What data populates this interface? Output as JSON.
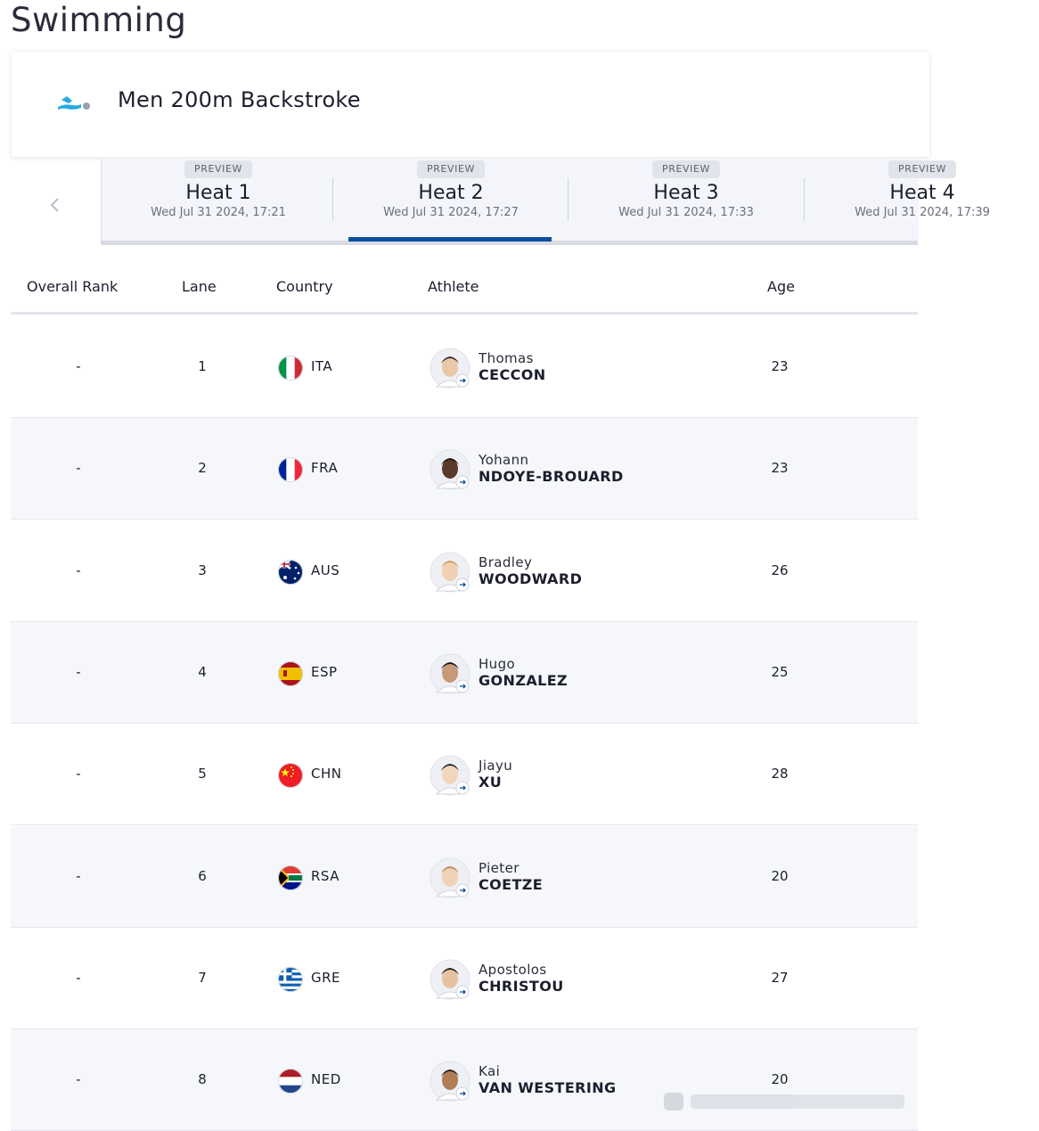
{
  "page": {
    "title": "Swimming"
  },
  "event": {
    "name": "Men 200m Backstroke",
    "icon": "swimming-pictogram-icon"
  },
  "heats": [
    {
      "badge": "PREVIEW",
      "label": "Heat 1",
      "time": "Wed Jul 31 2024, 17:21",
      "active": false
    },
    {
      "badge": "PREVIEW",
      "label": "Heat 2",
      "time": "Wed Jul 31 2024, 17:27",
      "active": true
    },
    {
      "badge": "PREVIEW",
      "label": "Heat 3",
      "time": "Wed Jul 31 2024, 17:33",
      "active": false
    },
    {
      "badge": "PREVIEW",
      "label": "Heat 4",
      "time": "Wed Jul 31 2024, 17:39",
      "active": false
    }
  ],
  "table": {
    "headers": {
      "rank": "Overall Rank",
      "lane": "Lane",
      "country": "Country",
      "athlete": "Athlete",
      "age": "Age"
    },
    "rows": [
      {
        "rank": "-",
        "lane": "1",
        "country": "ITA",
        "first": "Thomas",
        "last": "CECCON",
        "age": "23",
        "flag": "ita"
      },
      {
        "rank": "-",
        "lane": "2",
        "country": "FRA",
        "first": "Yohann",
        "last": "NDOYE-BROUARD",
        "age": "23",
        "flag": "fra"
      },
      {
        "rank": "-",
        "lane": "3",
        "country": "AUS",
        "first": "Bradley",
        "last": "WOODWARD",
        "age": "26",
        "flag": "aus"
      },
      {
        "rank": "-",
        "lane": "4",
        "country": "ESP",
        "first": "Hugo",
        "last": "GONZALEZ",
        "age": "25",
        "flag": "esp"
      },
      {
        "rank": "-",
        "lane": "5",
        "country": "CHN",
        "first": "Jiayu",
        "last": "XU",
        "age": "28",
        "flag": "chn"
      },
      {
        "rank": "-",
        "lane": "6",
        "country": "RSA",
        "first": "Pieter",
        "last": "COETZE",
        "age": "20",
        "flag": "rsa"
      },
      {
        "rank": "-",
        "lane": "7",
        "country": "GRE",
        "first": "Apostolos",
        "last": "CHRISTOU",
        "age": "27",
        "flag": "gre"
      },
      {
        "rank": "-",
        "lane": "8",
        "country": "NED",
        "first": "Kai",
        "last": "VAN WESTERING",
        "age": "20",
        "flag": "ned"
      }
    ]
  },
  "colors": {
    "accent": "#0b4ea2",
    "icon_blue": "#27a9e1",
    "badge_bg": "#e2e4ec"
  }
}
